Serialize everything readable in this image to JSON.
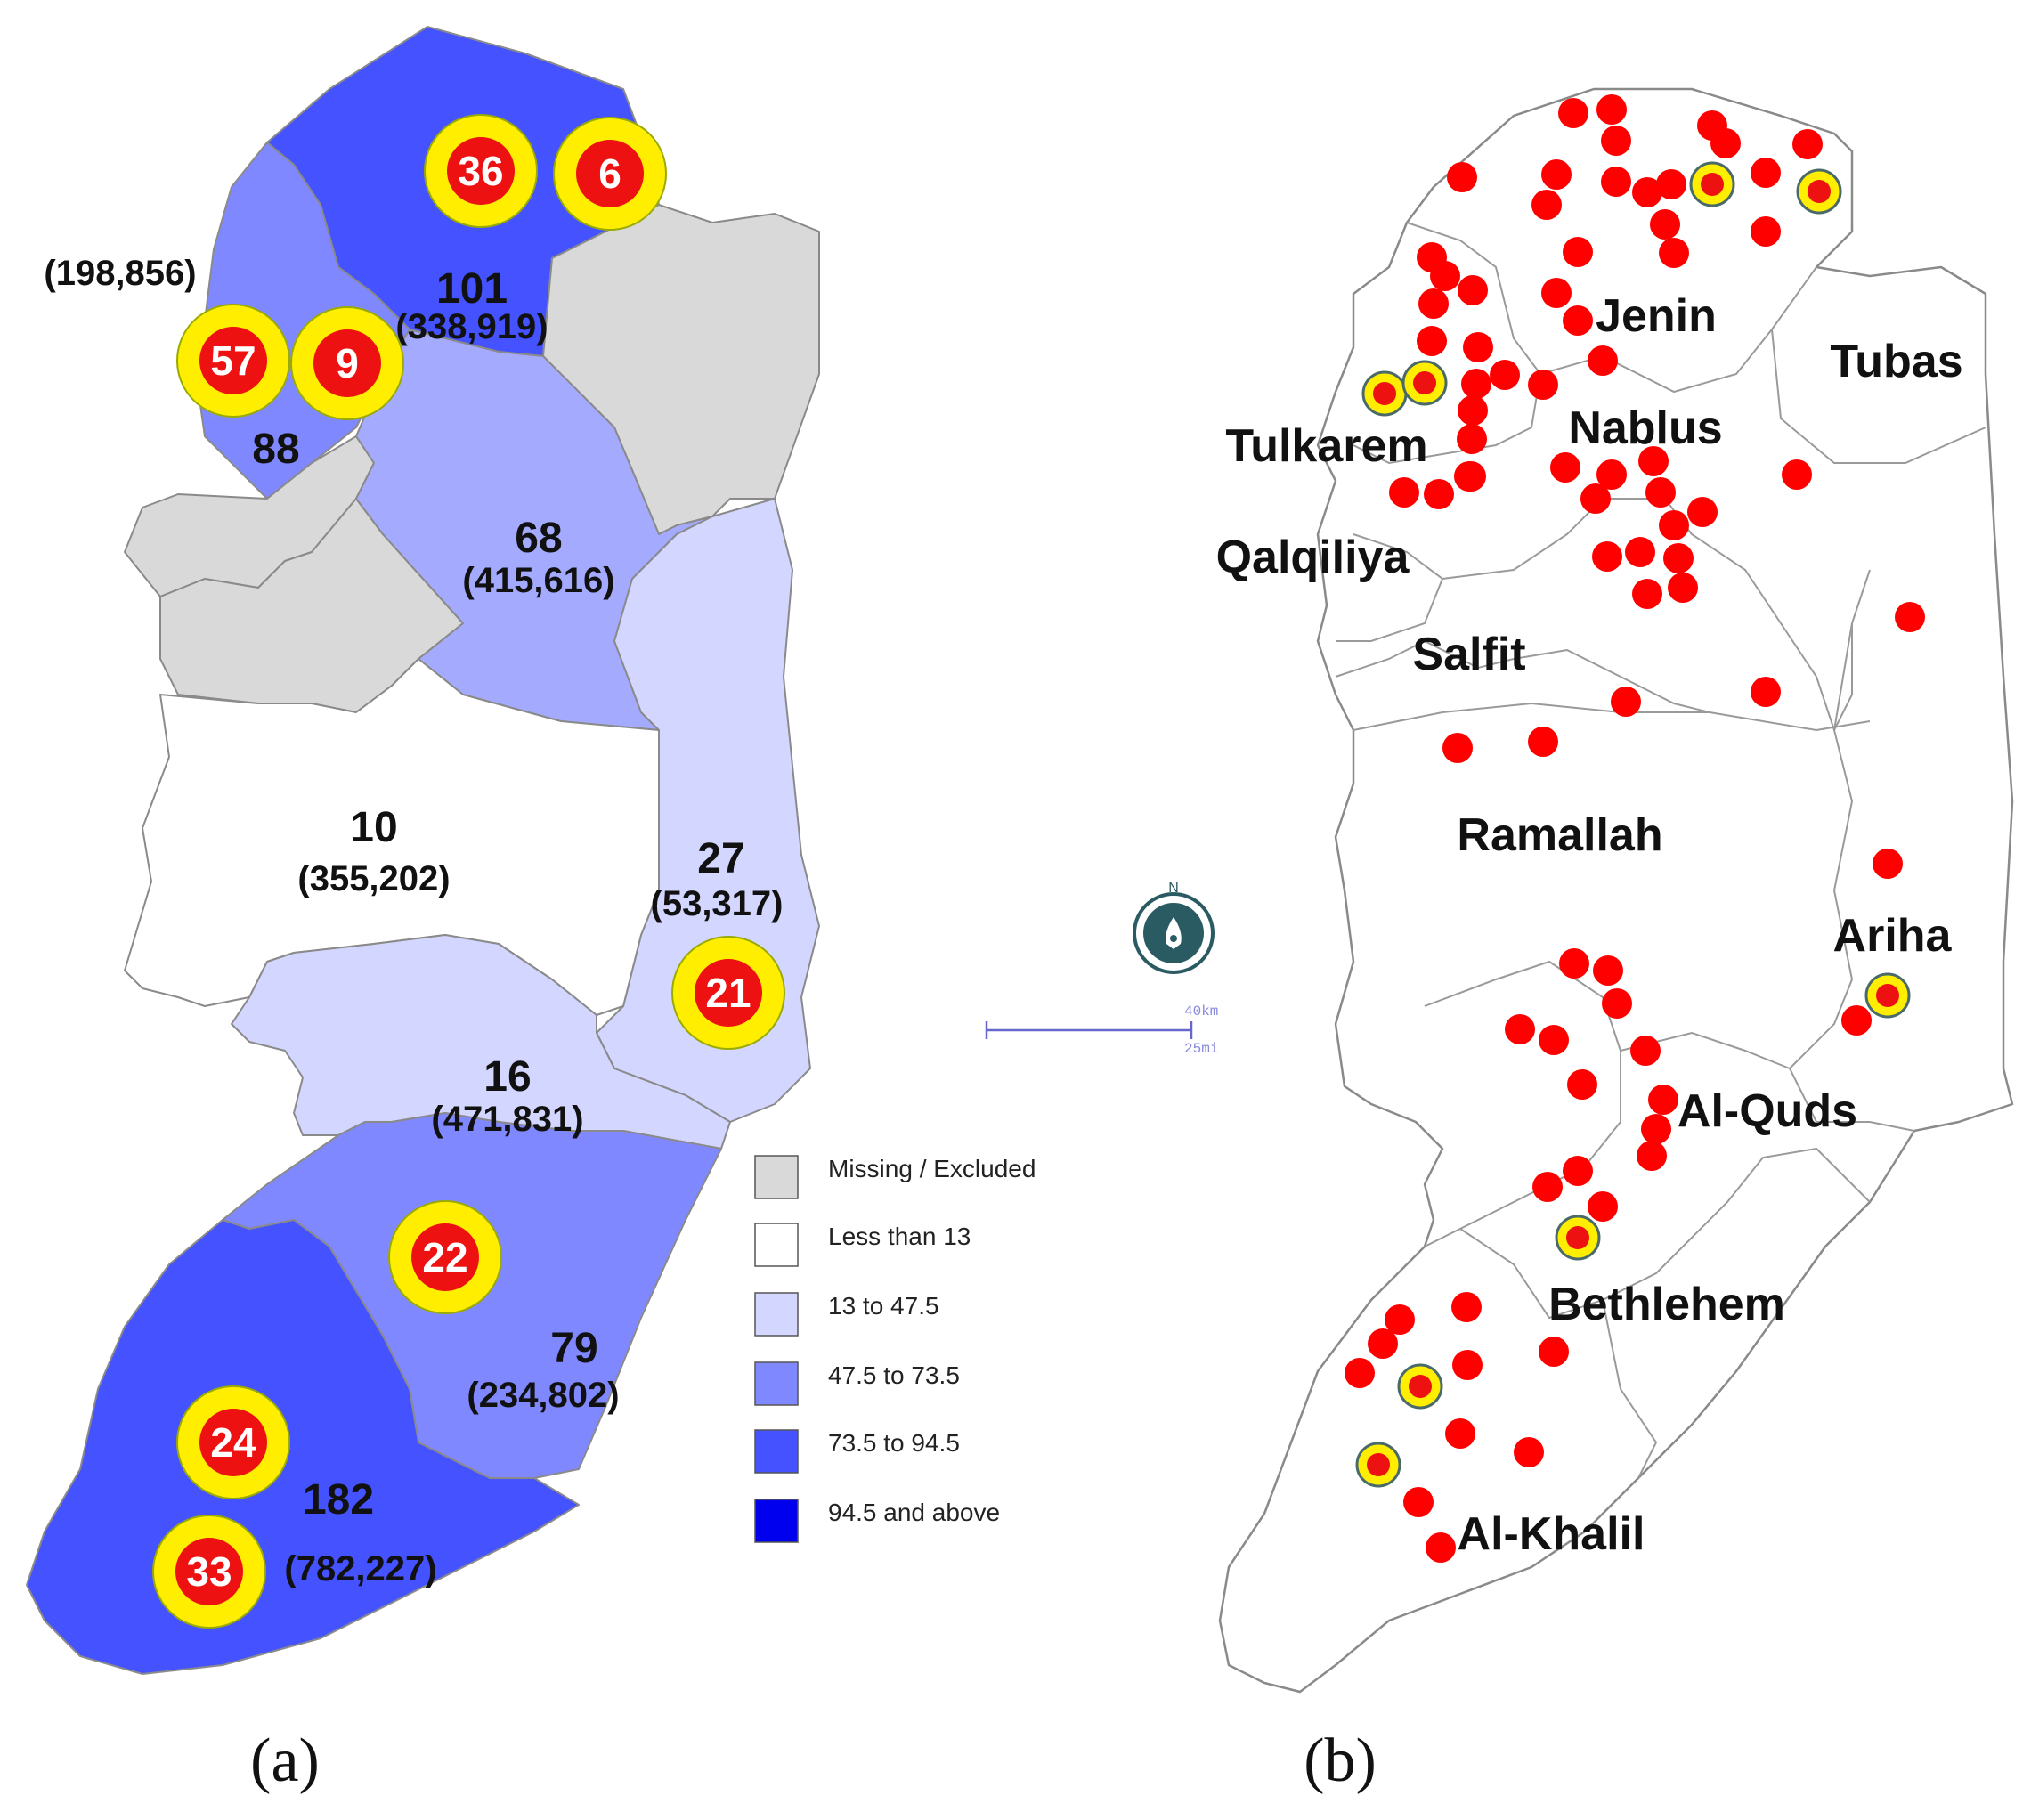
{
  "panel_a": {
    "label": "(a)",
    "legend": [
      {
        "label": "Missing / Excluded",
        "color": "#d9d9d9"
      },
      {
        "label": "Less than 13",
        "color": "#ffffff"
      },
      {
        "label": "13 to 47.5",
        "color": "#d3d6ff"
      },
      {
        "label": "47.5 to 73.5",
        "color": "#8088ff"
      },
      {
        "label": "73.5 to 94.5",
        "color": "#4453ff"
      },
      {
        "label": "94.5 and above",
        "color": "#0000ee"
      }
    ],
    "regions": [
      {
        "id": "jenin",
        "count": "101",
        "population": "(338,919)",
        "class": "73.5 to 94.5"
      },
      {
        "id": "tulkarem",
        "count": "88",
        "population": "(198,856)",
        "class": "47.5 to 73.5"
      },
      {
        "id": "nablus",
        "count": "68",
        "population": "(415,616)",
        "class": "47.5 to 73.5"
      },
      {
        "id": "ramallah",
        "count": "10",
        "population": "(355,202)",
        "class": "Less than 13"
      },
      {
        "id": "ariha",
        "count": "27",
        "population": "(53,317)",
        "class": "13 to 47.5"
      },
      {
        "id": "alquds",
        "count": "16",
        "population": "(471,831)",
        "class": "13 to 47.5"
      },
      {
        "id": "bethlehem",
        "count": "79",
        "population": "(234,802)",
        "class": "47.5 to 73.5"
      },
      {
        "id": "alkhalil",
        "count": "182",
        "population": "(782,227)",
        "class": "73.5 to 94.5"
      }
    ],
    "badges": [
      "36",
      "6",
      "57",
      "9",
      "21",
      "22",
      "24",
      "33"
    ]
  },
  "panel_b": {
    "label": "(b)",
    "district_names": [
      "Jenin",
      "Tubas",
      "Tulkarem",
      "Nablus",
      "Qalqiliya",
      "Salfit",
      "Ramallah",
      "Ariha",
      "Al-Quds",
      "Bethlehem",
      "Al-Khalil"
    ],
    "scale_bar": {
      "km": "40km",
      "mi": "25mi"
    },
    "north_arrow": "N"
  },
  "colors": {
    "badge_ring": "#ffee00",
    "badge_fill": "#ee1111",
    "dot": "#ff0000",
    "outline": "#8a8a8a"
  }
}
